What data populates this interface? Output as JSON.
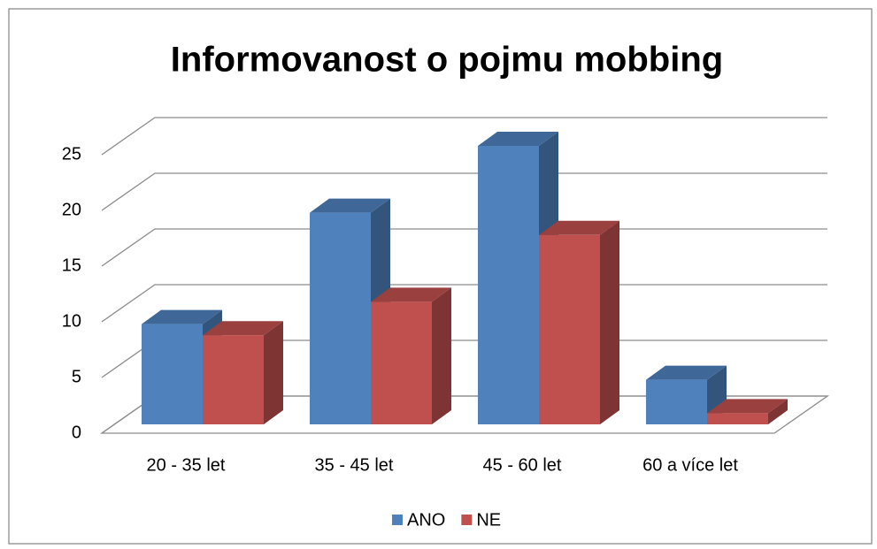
{
  "chart_data": {
    "type": "bar3d",
    "title": "Informovanost o pojmu mobbing",
    "categories": [
      "20 - 35 let",
      "35 - 45 let",
      "45 - 60 let",
      "60 a více let"
    ],
    "series": [
      {
        "name": "ANO",
        "color": "#4f81bd",
        "values": [
          9,
          19,
          25,
          4
        ]
      },
      {
        "name": "NE",
        "color": "#c0504d",
        "values": [
          8,
          11,
          17,
          1
        ]
      }
    ],
    "ylim": [
      0,
      25
    ],
    "yticks": [
      0,
      5,
      10,
      15,
      20,
      25
    ],
    "grid": true,
    "legend": "bottom"
  }
}
